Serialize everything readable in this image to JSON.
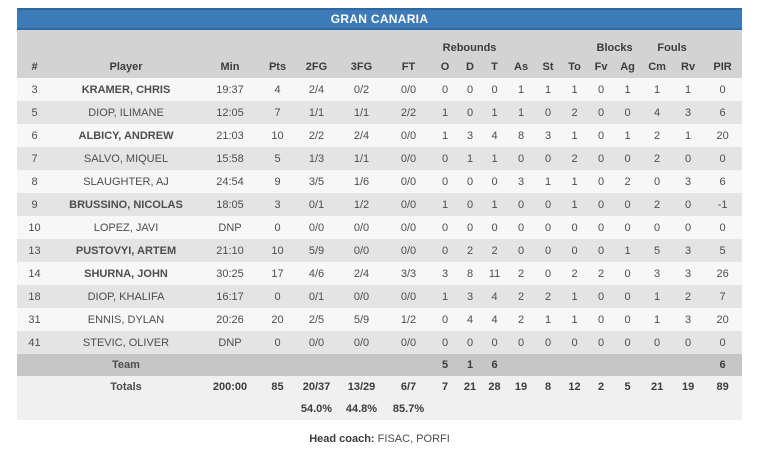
{
  "team": {
    "name": "GRAN CANARIA"
  },
  "colors": {
    "title_bg": "#3d7ab8",
    "title_border": "#2e689f",
    "header_gray": "#d3d3d3",
    "row_light": "#f7f7f7",
    "row_dark": "#e4e4e4",
    "team_row_gray": "#c6c6c6",
    "totals_row_gray": "#f0f0f0"
  },
  "table": {
    "group_headers": {
      "rebounds": "Rebounds",
      "blocks": "Blocks",
      "fouls": "Fouls"
    },
    "columns": [
      "#",
      "Player",
      "Min",
      "Pts",
      "2FG",
      "3FG",
      "FT",
      "O",
      "D",
      "T",
      "As",
      "St",
      "To",
      "Fv",
      "Ag",
      "Cm",
      "Rv",
      "PIR"
    ],
    "rows": [
      {
        "number": "3",
        "player": "KRAMER, CHRIS",
        "bold": true,
        "min": "19:37",
        "pts": "4",
        "fg2": "2/4",
        "fg3": "0/2",
        "ft": "0/0",
        "o": "0",
        "d": "0",
        "t": "0",
        "as": "1",
        "st": "1",
        "to": "1",
        "fv": "0",
        "ag": "1",
        "cm": "1",
        "rv": "1",
        "pir": "0"
      },
      {
        "number": "5",
        "player": "DIOP, ILIMANE",
        "bold": false,
        "min": "12:05",
        "pts": "7",
        "fg2": "1/1",
        "fg3": "1/1",
        "ft": "2/2",
        "o": "1",
        "d": "0",
        "t": "1",
        "as": "1",
        "st": "0",
        "to": "2",
        "fv": "0",
        "ag": "0",
        "cm": "4",
        "rv": "3",
        "pir": "6"
      },
      {
        "number": "6",
        "player": "ALBICY, ANDREW",
        "bold": true,
        "min": "21:03",
        "pts": "10",
        "fg2": "2/2",
        "fg3": "2/4",
        "ft": "0/0",
        "o": "1",
        "d": "3",
        "t": "4",
        "as": "8",
        "st": "3",
        "to": "1",
        "fv": "0",
        "ag": "1",
        "cm": "2",
        "rv": "1",
        "pir": "20"
      },
      {
        "number": "7",
        "player": "SALVO, MIQUEL",
        "bold": false,
        "min": "15:58",
        "pts": "5",
        "fg2": "1/3",
        "fg3": "1/1",
        "ft": "0/0",
        "o": "0",
        "d": "1",
        "t": "1",
        "as": "0",
        "st": "0",
        "to": "2",
        "fv": "0",
        "ag": "0",
        "cm": "2",
        "rv": "0",
        "pir": "0"
      },
      {
        "number": "8",
        "player": "SLAUGHTER, AJ",
        "bold": false,
        "min": "24:54",
        "pts": "9",
        "fg2": "3/5",
        "fg3": "1/6",
        "ft": "0/0",
        "o": "0",
        "d": "0",
        "t": "0",
        "as": "3",
        "st": "1",
        "to": "1",
        "fv": "0",
        "ag": "2",
        "cm": "0",
        "rv": "3",
        "pir": "6"
      },
      {
        "number": "9",
        "player": "BRUSSINO, NICOLAS",
        "bold": true,
        "min": "18:05",
        "pts": "3",
        "fg2": "0/1",
        "fg3": "1/2",
        "ft": "0/0",
        "o": "1",
        "d": "0",
        "t": "1",
        "as": "0",
        "st": "0",
        "to": "1",
        "fv": "0",
        "ag": "0",
        "cm": "2",
        "rv": "0",
        "pir": "-1"
      },
      {
        "number": "10",
        "player": "LOPEZ, JAVI",
        "bold": false,
        "min": "DNP",
        "pts": "0",
        "fg2": "0/0",
        "fg3": "0/0",
        "ft": "0/0",
        "o": "0",
        "d": "0",
        "t": "0",
        "as": "0",
        "st": "0",
        "to": "0",
        "fv": "0",
        "ag": "0",
        "cm": "0",
        "rv": "0",
        "pir": "0"
      },
      {
        "number": "13",
        "player": "PUSTOVYI, ARTEM",
        "bold": true,
        "min": "21:10",
        "pts": "10",
        "fg2": "5/9",
        "fg3": "0/0",
        "ft": "0/0",
        "o": "0",
        "d": "2",
        "t": "2",
        "as": "0",
        "st": "0",
        "to": "0",
        "fv": "0",
        "ag": "1",
        "cm": "5",
        "rv": "3",
        "pir": "5"
      },
      {
        "number": "14",
        "player": "SHURNA, JOHN",
        "bold": true,
        "min": "30:25",
        "pts": "17",
        "fg2": "4/6",
        "fg3": "2/4",
        "ft": "3/3",
        "o": "3",
        "d": "8",
        "t": "11",
        "as": "2",
        "st": "0",
        "to": "2",
        "fv": "2",
        "ag": "0",
        "cm": "3",
        "rv": "3",
        "pir": "26"
      },
      {
        "number": "18",
        "player": "DIOP, KHALIFA",
        "bold": false,
        "min": "16:17",
        "pts": "0",
        "fg2": "0/1",
        "fg3": "0/0",
        "ft": "0/0",
        "o": "1",
        "d": "3",
        "t": "4",
        "as": "2",
        "st": "2",
        "to": "1",
        "fv": "0",
        "ag": "0",
        "cm": "1",
        "rv": "2",
        "pir": "7"
      },
      {
        "number": "31",
        "player": "ENNIS, DYLAN",
        "bold": false,
        "min": "20:26",
        "pts": "20",
        "fg2": "2/5",
        "fg3": "5/9",
        "ft": "1/2",
        "o": "0",
        "d": "4",
        "t": "4",
        "as": "2",
        "st": "1",
        "to": "1",
        "fv": "0",
        "ag": "0",
        "cm": "1",
        "rv": "3",
        "pir": "20"
      },
      {
        "number": "41",
        "player": "STEVIC, OLIVER",
        "bold": false,
        "min": "DNP",
        "pts": "0",
        "fg2": "0/0",
        "fg3": "0/0",
        "ft": "0/0",
        "o": "0",
        "d": "0",
        "t": "0",
        "as": "0",
        "st": "0",
        "to": "0",
        "fv": "0",
        "ag": "0",
        "cm": "0",
        "rv": "0",
        "pir": "0"
      }
    ],
    "team_row": {
      "number": "",
      "player": "Team",
      "min": "",
      "pts": "",
      "fg2": "",
      "fg3": "",
      "ft": "",
      "o": "5",
      "d": "1",
      "t": "6",
      "as": "",
      "st": "",
      "to": "",
      "fv": "",
      "ag": "",
      "cm": "",
      "rv": "",
      "pir": "6"
    },
    "totals_row": {
      "number": "",
      "player": "Totals",
      "min": "200:00",
      "pts": "85",
      "fg2": "20/37",
      "fg3": "13/29",
      "ft": "6/7",
      "o": "7",
      "d": "21",
      "t": "28",
      "as": "19",
      "st": "8",
      "to": "12",
      "fv": "2",
      "ag": "5",
      "cm": "21",
      "rv": "19",
      "pir": "89"
    },
    "percentages_row": {
      "number": "",
      "player": "",
      "min": "",
      "pts": "",
      "fg2": "54.0%",
      "fg3": "44.8%",
      "ft": "85.7%",
      "o": "",
      "d": "",
      "t": "",
      "as": "",
      "st": "",
      "to": "",
      "fv": "",
      "ag": "",
      "cm": "",
      "rv": "",
      "pir": ""
    }
  },
  "footer": {
    "head_coach_label": "Head coach:",
    "head_coach_value": "FISAC, PORFI"
  }
}
